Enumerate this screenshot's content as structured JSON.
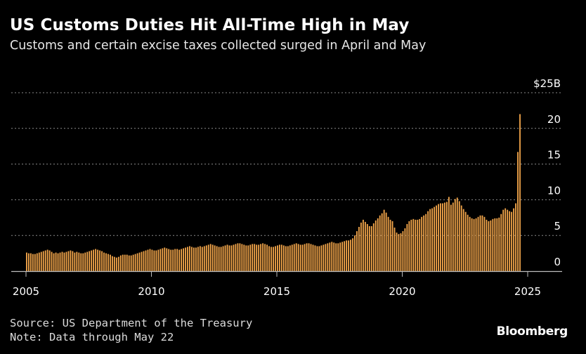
{
  "title": "US Customs Duties Hit All-Time High in May",
  "subtitle": "Customs and certain excise taxes collected surged in April and May",
  "source": "Source: US Department of the Treasury",
  "note": "Note: Data through May 22",
  "brand": "Bloomberg",
  "colors": {
    "background": "#000000",
    "bar": "#f2a54a",
    "gridline": "#8a8a8a",
    "axis": "#bdbdbd",
    "text": "#ffffff"
  },
  "chart_data": {
    "type": "bar",
    "title": "US Customs Duties Hit All-Time High in May",
    "subtitle": "Customs and certain excise taxes collected surged in April and May",
    "xlabel": "",
    "ylabel": "",
    "y_unit_label": "$25B",
    "xlim": [
      "2005-01",
      "2025-05"
    ],
    "ylim": [
      0,
      25
    ],
    "grid": true,
    "legend": "none",
    "x_tick_labels": [
      "2005",
      "2010",
      "2015",
      "2020",
      "2025"
    ],
    "y_tick_labels": [
      "0",
      "5",
      "10",
      "15",
      "20",
      "$25B"
    ],
    "y_ticks": [
      0,
      5,
      10,
      15,
      20,
      25
    ],
    "frequency": "monthly",
    "start": "2005-01",
    "values": [
      2.6,
      2.5,
      2.5,
      2.4,
      2.4,
      2.5,
      2.6,
      2.7,
      2.8,
      2.9,
      3.0,
      2.9,
      2.7,
      2.5,
      2.6,
      2.5,
      2.6,
      2.7,
      2.6,
      2.7,
      2.8,
      2.9,
      2.8,
      2.6,
      2.7,
      2.6,
      2.5,
      2.5,
      2.6,
      2.7,
      2.8,
      2.9,
      3.0,
      3.1,
      3.0,
      2.9,
      2.8,
      2.6,
      2.5,
      2.4,
      2.3,
      2.1,
      2.0,
      1.9,
      2.0,
      2.2,
      2.3,
      2.3,
      2.3,
      2.2,
      2.2,
      2.3,
      2.4,
      2.5,
      2.6,
      2.7,
      2.8,
      2.9,
      3.0,
      3.1,
      3.0,
      2.9,
      2.9,
      3.0,
      3.1,
      3.2,
      3.3,
      3.2,
      3.1,
      3.0,
      3.0,
      3.1,
      3.1,
      3.0,
      3.1,
      3.2,
      3.3,
      3.4,
      3.5,
      3.4,
      3.3,
      3.3,
      3.4,
      3.5,
      3.4,
      3.5,
      3.6,
      3.7,
      3.8,
      3.7,
      3.6,
      3.5,
      3.4,
      3.4,
      3.5,
      3.6,
      3.7,
      3.6,
      3.6,
      3.7,
      3.8,
      3.9,
      3.9,
      3.8,
      3.7,
      3.6,
      3.6,
      3.7,
      3.8,
      3.8,
      3.7,
      3.7,
      3.8,
      3.9,
      3.8,
      3.7,
      3.5,
      3.4,
      3.4,
      3.5,
      3.6,
      3.7,
      3.7,
      3.6,
      3.5,
      3.5,
      3.6,
      3.7,
      3.8,
      3.9,
      3.8,
      3.7,
      3.7,
      3.8,
      3.9,
      3.9,
      3.8,
      3.7,
      3.6,
      3.5,
      3.5,
      3.6,
      3.7,
      3.8,
      3.9,
      4.0,
      4.1,
      4.0,
      3.9,
      3.9,
      4.0,
      4.1,
      4.2,
      4.3,
      4.3,
      4.4,
      4.6,
      5.0,
      5.6,
      6.2,
      6.8,
      7.2,
      6.9,
      6.6,
      6.3,
      6.3,
      6.7,
      7.1,
      7.4,
      7.8,
      8.1,
      8.6,
      8.2,
      7.6,
      7.2,
      7.0,
      6.1,
      5.4,
      5.2,
      5.3,
      5.6,
      6.0,
      6.6,
      7.0,
      7.2,
      7.3,
      7.2,
      7.2,
      7.3,
      7.6,
      7.8,
      8.0,
      8.4,
      8.7,
      8.8,
      9.0,
      9.2,
      9.4,
      9.5,
      9.5,
      9.6,
      9.7,
      10.4,
      9.3,
      9.6,
      10.1,
      10.3,
      9.8,
      9.2,
      8.7,
      8.3,
      7.9,
      7.6,
      7.4,
      7.3,
      7.4,
      7.6,
      7.8,
      7.8,
      7.6,
      7.2,
      7.0,
      7.1,
      7.3,
      7.4,
      7.4,
      7.5,
      8.0,
      8.6,
      8.8,
      8.6,
      8.4,
      8.3,
      8.8,
      9.5,
      16.7,
      22.0
    ]
  }
}
